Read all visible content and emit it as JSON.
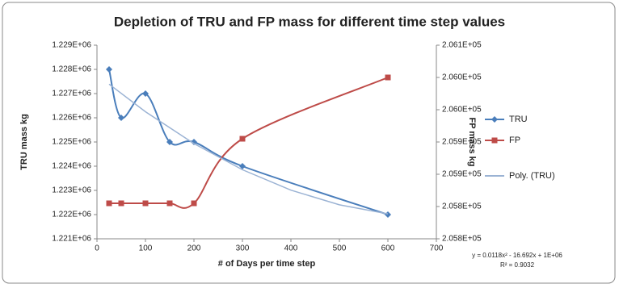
{
  "chart_data": {
    "type": "line",
    "title": "Depletion of TRU and FP mass for different time step values",
    "x_label": "# of Days per time step",
    "y_label": "TRU mass kg",
    "y2_label": "FP mass kg",
    "xlim": [
      0,
      700
    ],
    "xticks": [
      0,
      100,
      200,
      300,
      400,
      500,
      600,
      700
    ],
    "ylim": [
      1221000,
      1229000
    ],
    "yticks": [
      {
        "value": 1221000,
        "label": "1.221E+06"
      },
      {
        "value": 1222000,
        "label": "1.222E+06"
      },
      {
        "value": 1223000,
        "label": "1.223E+06"
      },
      {
        "value": 1224000,
        "label": "1.224E+06"
      },
      {
        "value": 1225000,
        "label": "1.225E+06"
      },
      {
        "value": 1226000,
        "label": "1.226E+06"
      },
      {
        "value": 1227000,
        "label": "1.227E+06"
      },
      {
        "value": 1228000,
        "label": "1.228E+06"
      },
      {
        "value": 1229000,
        "label": "1.229E+06"
      }
    ],
    "y2lim": [
      205775,
      206075
    ],
    "y2ticks": [
      {
        "value": 205775,
        "label": "2.058E+05"
      },
      {
        "value": 205825,
        "label": "2.058E+05"
      },
      {
        "value": 205875,
        "label": "2.059E+05"
      },
      {
        "value": 205925,
        "label": "2.059E+05"
      },
      {
        "value": 205975,
        "label": "2.060E+05"
      },
      {
        "value": 206025,
        "label": "2.060E+05"
      },
      {
        "value": 206075,
        "label": "2.061E+05"
      }
    ],
    "series": [
      {
        "name": "TRU",
        "color": "#4a7ebb",
        "marker": "diamond",
        "x": [
          25,
          50,
          100,
          150,
          200,
          300,
          600
        ],
        "values": [
          1228000,
          1226000,
          1227000,
          1225000,
          1225000,
          1224000,
          1222000
        ]
      },
      {
        "name": "FP",
        "color": "#be4b48",
        "marker": "square",
        "axis": "y2",
        "x": [
          25,
          50,
          100,
          150,
          200,
          300,
          600
        ],
        "values": [
          205830,
          205830,
          205830,
          205830,
          205830,
          205930,
          206025
        ]
      },
      {
        "name": "Poly. (TRU)",
        "color": "#9bb3d4",
        "marker": "none",
        "x": [
          25,
          100,
          200,
          300,
          400,
          500,
          600
        ],
        "values": [
          1227390,
          1226250,
          1224934,
          1223854,
          1223011,
          1222404,
          1222030
        ]
      }
    ],
    "annotations": [
      "y = 0.0118x² - 16.692x + 1E+06",
      "R² = 0.9032"
    ]
  }
}
